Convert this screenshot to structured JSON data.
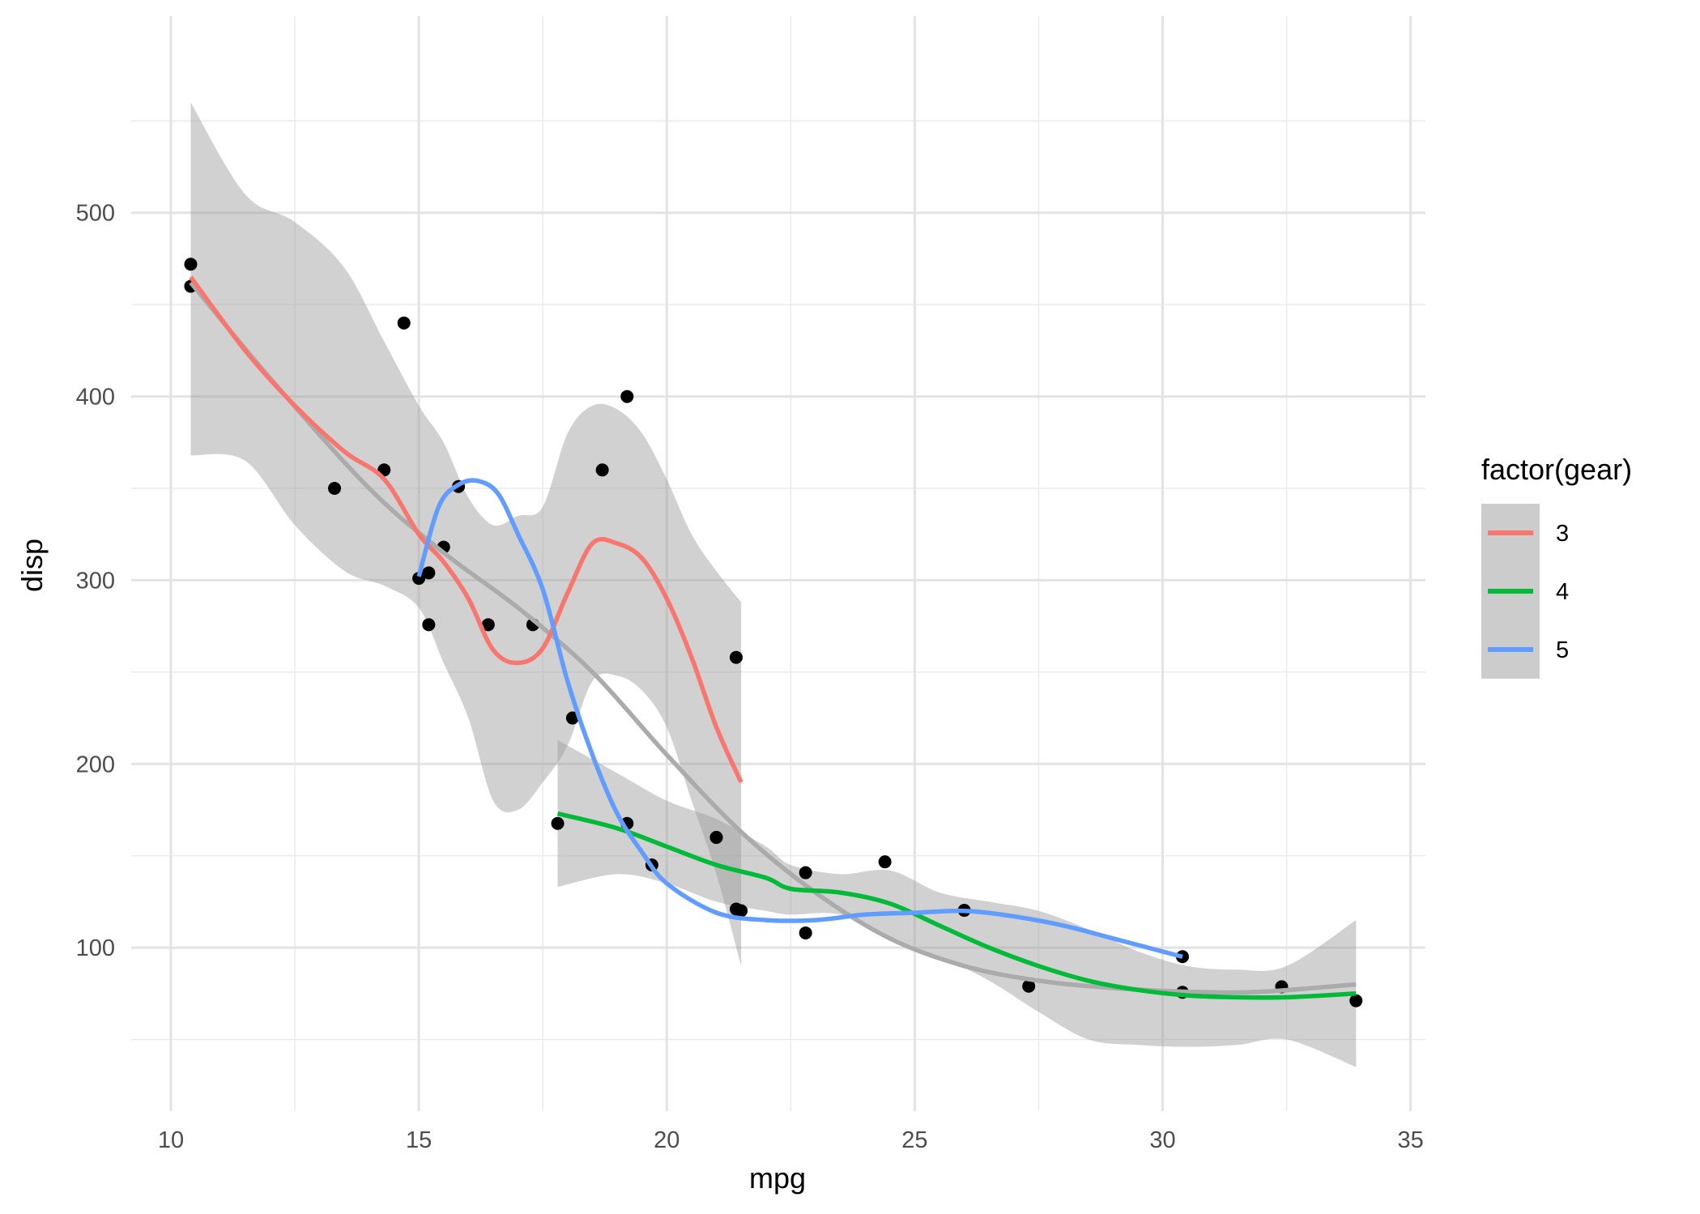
{
  "chart_data": {
    "type": "scatter",
    "xlabel": "mpg",
    "ylabel": "disp",
    "xlim": [
      9.2,
      35.3
    ],
    "ylim": [
      11,
      607
    ],
    "x_ticks": [
      10,
      15,
      20,
      25,
      30,
      35
    ],
    "y_ticks": [
      100,
      200,
      300,
      400,
      500
    ],
    "x_tick_labels": [
      "10",
      "15",
      "20",
      "25",
      "30",
      "35"
    ],
    "y_tick_labels": [
      "100",
      "200",
      "300",
      "400",
      "500"
    ],
    "grid": true,
    "legend": {
      "title": "factor(gear)",
      "placement": "right",
      "entries": [
        {
          "label": "3",
          "color": "#F8766D"
        },
        {
          "label": "4",
          "color": "#00BA38"
        },
        {
          "label": "5",
          "color": "#619CFF"
        }
      ]
    },
    "points": [
      {
        "x": 21.0,
        "y": 160
      },
      {
        "x": 21.0,
        "y": 160
      },
      {
        "x": 22.8,
        "y": 108
      },
      {
        "x": 21.4,
        "y": 258
      },
      {
        "x": 18.7,
        "y": 360
      },
      {
        "x": 18.1,
        "y": 225
      },
      {
        "x": 14.3,
        "y": 360
      },
      {
        "x": 24.4,
        "y": 146.7
      },
      {
        "x": 22.8,
        "y": 140.8
      },
      {
        "x": 19.2,
        "y": 167.6
      },
      {
        "x": 17.8,
        "y": 167.6
      },
      {
        "x": 16.4,
        "y": 275.8
      },
      {
        "x": 17.3,
        "y": 275.8
      },
      {
        "x": 15.2,
        "y": 275.8
      },
      {
        "x": 10.4,
        "y": 472
      },
      {
        "x": 10.4,
        "y": 460
      },
      {
        "x": 14.7,
        "y": 440
      },
      {
        "x": 32.4,
        "y": 78.7
      },
      {
        "x": 30.4,
        "y": 75.7
      },
      {
        "x": 33.9,
        "y": 71.1
      },
      {
        "x": 21.5,
        "y": 120.1
      },
      {
        "x": 15.5,
        "y": 318
      },
      {
        "x": 15.2,
        "y": 304
      },
      {
        "x": 13.3,
        "y": 350
      },
      {
        "x": 19.2,
        "y": 400
      },
      {
        "x": 27.3,
        "y": 79
      },
      {
        "x": 26.0,
        "y": 120.3
      },
      {
        "x": 30.4,
        "y": 95.1
      },
      {
        "x": 15.8,
        "y": 351
      },
      {
        "x": 19.7,
        "y": 145
      },
      {
        "x": 15.0,
        "y": 301
      },
      {
        "x": 21.4,
        "y": 121
      }
    ],
    "series": [
      {
        "name": "3",
        "color": "#F8766D",
        "x": [
          10.4,
          11.5,
          12.5,
          13.5,
          14.3,
          15.0,
          15.5,
          16.0,
          16.5,
          17.0,
          17.5,
          18.0,
          18.5,
          19.0,
          19.5,
          20.0,
          20.5,
          21.0,
          21.5
        ],
        "y": [
          465,
          425,
          395,
          370,
          355,
          325,
          310,
          290,
          262,
          255,
          263,
          293,
          320,
          320,
          312,
          290,
          258,
          220,
          190
        ],
        "band_upper": [
          560,
          510,
          495,
          470,
          430,
          395,
          375,
          345,
          330,
          335,
          340,
          380,
          395,
          393,
          380,
          355,
          325,
          305,
          288
        ],
        "band_lower": [
          368,
          365,
          330,
          305,
          297,
          285,
          255,
          225,
          180,
          175,
          190,
          210,
          245,
          248,
          240,
          220,
          180,
          140,
          90
        ]
      },
      {
        "name": "4",
        "color": "#00BA38",
        "x": [
          17.8,
          19.0,
          20.0,
          21.0,
          22.0,
          22.5,
          23.5,
          24.5,
          25.5,
          26.5,
          27.5,
          28.5,
          29.5,
          30.5,
          31.5,
          32.5,
          33.9
        ],
        "y": [
          173,
          165,
          155,
          145,
          138,
          132,
          130,
          124,
          112,
          100,
          90,
          82,
          77,
          74,
          73,
          73,
          75
        ],
        "band_upper": [
          213,
          195,
          180,
          170,
          155,
          145,
          140,
          142,
          130,
          125,
          120,
          110,
          98,
          90,
          88,
          90,
          115
        ],
        "band_lower": [
          133,
          140,
          135,
          125,
          120,
          118,
          118,
          105,
          95,
          82,
          65,
          50,
          47,
          46,
          47,
          50,
          35
        ]
      },
      {
        "name": "5",
        "color": "#619CFF",
        "x": [
          15.0,
          15.4,
          15.8,
          16.2,
          16.6,
          17.0,
          17.5,
          18.0,
          18.5,
          19.0,
          19.5,
          20.0,
          21.0,
          22.0,
          23.0,
          24.0,
          25.0,
          26.0,
          27.0,
          28.0,
          29.0,
          30.4
        ],
        "y": [
          302,
          340,
          352,
          354,
          347,
          325,
          295,
          245,
          205,
          173,
          152,
          135,
          119,
          115,
          115,
          118,
          119,
          120,
          117,
          112,
          105,
          95
        ],
        "band_upper": [],
        "band_lower": []
      },
      {
        "name": "",
        "color": "#ABABAB",
        "x": [
          10.4,
          12.0,
          14.0,
          15.5,
          17.0,
          18.5,
          20.0,
          21.5,
          23.0,
          24.5,
          26.0,
          27.5,
          29.0,
          30.5,
          32.0,
          33.9
        ],
        "y": [
          462,
          410,
          350,
          315,
          285,
          250,
          205,
          163,
          130,
          105,
          90,
          82,
          78,
          76,
          76,
          80
        ],
        "band_upper": [],
        "band_lower": []
      }
    ]
  }
}
